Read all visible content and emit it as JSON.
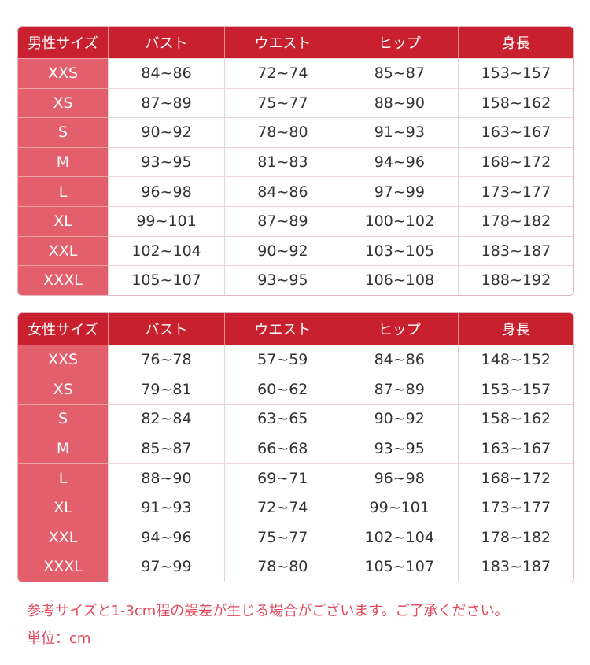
{
  "tables": [
    {
      "headers": [
        "男性サイズ",
        "バスト",
        "ウエスト",
        "ヒップ",
        "身長"
      ],
      "rows": [
        [
          "XXS",
          "84~86",
          "72~74",
          "85~87",
          "153~157"
        ],
        [
          "XS",
          "87~89",
          "75~77",
          "88~90",
          "158~162"
        ],
        [
          "S",
          "90~92",
          "78~80",
          "91~93",
          "163~167"
        ],
        [
          "M",
          "93~95",
          "81~83",
          "94~96",
          "168~172"
        ],
        [
          "L",
          "96~98",
          "84~86",
          "97~99",
          "173~177"
        ],
        [
          "XL",
          "99~101",
          "87~89",
          "100~102",
          "178~182"
        ],
        [
          "XXL",
          "102~104",
          "90~92",
          "103~105",
          "183~187"
        ],
        [
          "XXXL",
          "105~107",
          "93~95",
          "106~108",
          "188~192"
        ]
      ]
    },
    {
      "headers": [
        "女性サイズ",
        "バスト",
        "ウエスト",
        "ヒップ",
        "身長"
      ],
      "rows": [
        [
          "XXS",
          "76~78",
          "57~59",
          "84~86",
          "148~152"
        ],
        [
          "XS",
          "79~81",
          "60~62",
          "87~89",
          "153~157"
        ],
        [
          "S",
          "82~84",
          "63~65",
          "90~92",
          "158~162"
        ],
        [
          "M",
          "85~87",
          "66~68",
          "93~95",
          "163~167"
        ],
        [
          "L",
          "88~90",
          "69~71",
          "96~98",
          "168~172"
        ],
        [
          "XL",
          "91~93",
          "72~74",
          "99~101",
          "173~177"
        ],
        [
          "XXL",
          "94~96",
          "75~77",
          "102~104",
          "178~182"
        ],
        [
          "XXXL",
          "97~99",
          "78~80",
          "105~107",
          "183~187"
        ]
      ]
    }
  ],
  "notes": {
    "tolerance": "参考サイズと1-3cm程の誤差が生じる場合がございます。ご了承ください。",
    "unit": "単位：cm"
  },
  "colors": {
    "header": "#c8202f",
    "size_column": "#e25f6b",
    "note_text": "#e04a5c"
  }
}
